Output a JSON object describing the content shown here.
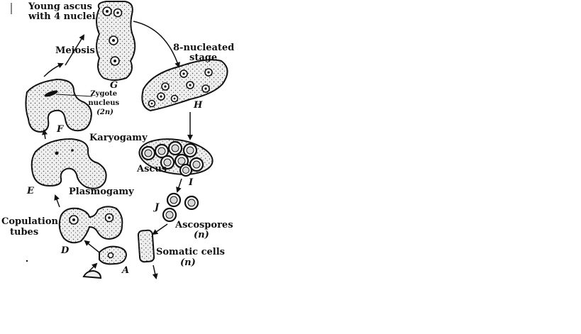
{
  "labels": {
    "young_ascus": [
      "Young ascus",
      "with 4 nuclei"
    ],
    "meiosis": "Meiosis",
    "eight_nucleated": [
      "8-nucleated",
      "stage"
    ],
    "zygote_nucleus": [
      "Zygote",
      "nucleus",
      "(2n)"
    ],
    "karyogamy": "Karyogamy",
    "ascus": "Ascus",
    "plasmogamy": "Plasmogamy",
    "copulation_tubes": [
      "Copulation",
      "tubes"
    ],
    "ascospores": [
      "Ascospores",
      "(n)"
    ],
    "somatic_cells": [
      "Somatic cells",
      "(n)"
    ]
  },
  "stage_letters": {
    "A": "A",
    "D": "D",
    "E": "E",
    "F": "F",
    "G": "G",
    "H": "H",
    "I": "I",
    "J": "J"
  }
}
